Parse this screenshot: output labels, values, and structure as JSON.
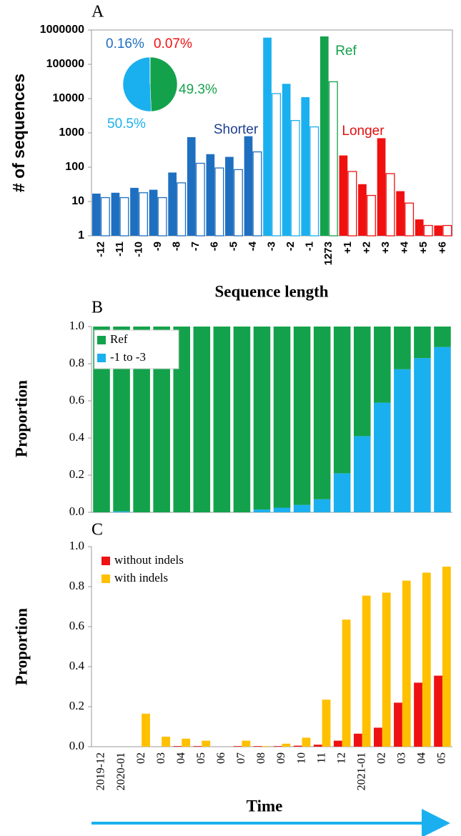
{
  "chart_data": [
    {
      "type": "bar",
      "label": "A",
      "log_scale": true,
      "ylabel": "# of sequences",
      "xlabel": "Sequence length",
      "categories": [
        "-12",
        "-11",
        "-10",
        "-9",
        "-8",
        "-7",
        "-6",
        "-5",
        "-4",
        "-3",
        "-2",
        "-1",
        "1273",
        "+1",
        "+2",
        "+3",
        "+4",
        "+5",
        "+6"
      ],
      "bar_colors": [
        "#1f6fc0",
        "#1f6fc0",
        "#1f6fc0",
        "#1f6fc0",
        "#1f6fc0",
        "#1f6fc0",
        "#1f6fc0",
        "#1f6fc0",
        "#1f6fc0",
        "#1ab0ef",
        "#1ab0ef",
        "#1ab0ef",
        "#13a24b",
        "#f01010",
        "#f01010",
        "#f01010",
        "#f01010",
        "#f01010",
        "#f01010"
      ],
      "series": [
        {
          "values": [
            17,
            18,
            25,
            22,
            70,
            750,
            240,
            200,
            800,
            600000,
            27000,
            11000,
            650000,
            220,
            32,
            700,
            20,
            3,
            2
          ]
        },
        {
          "values": [
            13,
            13,
            18,
            13,
            35,
            130,
            95,
            85,
            280,
            14000,
            2300,
            1500,
            31000,
            75,
            15,
            65,
            9,
            2,
            2
          ]
        }
      ],
      "ylim": [
        1,
        1000000
      ],
      "yticks": [
        1,
        10,
        100,
        1000,
        10000,
        100000,
        1000000
      ],
      "annotations": [
        {
          "text": "Shorter",
          "color": "#1f3f8f"
        },
        {
          "text": "Ref",
          "color": "#13a24b"
        },
        {
          "text": "Longer",
          "color": "#e01010"
        }
      ]
    },
    {
      "type": "pie",
      "values": [
        0.07,
        49.3,
        50.5,
        0.16
      ],
      "value_labels": [
        "0.07%",
        "49.3%",
        "50.5%",
        "0.16%"
      ],
      "colors": [
        "#f01010",
        "#13a24b",
        "#1ab0ef",
        "#1f6fc0"
      ]
    },
    {
      "type": "stacked_bar",
      "label": "B",
      "ylabel": "Proportion",
      "series": [
        {
          "name": "Ref",
          "color": "#13a24b",
          "values": [
            1,
            0.995,
            1,
            1,
            1,
            1,
            1,
            1,
            0.985,
            0.975,
            0.96,
            0.93,
            0.79,
            0.59,
            0.41,
            0.23,
            0.17,
            0.11
          ]
        },
        {
          "name": "-1 to -3",
          "color": "#1ab0ef",
          "values": [
            0,
            0.005,
            0,
            0,
            0,
            0,
            0,
            0,
            0.015,
            0.025,
            0.04,
            0.07,
            0.21,
            0.41,
            0.59,
            0.77,
            0.83,
            0.89
          ]
        }
      ],
      "ylim": [
        0,
        1
      ],
      "yticks": [
        {
          "value": 0,
          "label": "0.0"
        },
        {
          "value": 0.2,
          "label": "0.2"
        },
        {
          "value": 0.4,
          "label": "0.4"
        },
        {
          "value": 0.6,
          "label": "0.6"
        },
        {
          "value": 0.8,
          "label": "0.8"
        },
        {
          "value": 1,
          "label": "1.0"
        }
      ]
    },
    {
      "type": "grouped_bar",
      "label": "C",
      "ylabel": "Proportion",
      "xlabel": "Time",
      "categories": [
        "2019-12",
        "2020-01",
        "02",
        "03",
        "04",
        "05",
        "06",
        "07",
        "08",
        "09",
        "10",
        "11",
        "12",
        "2021-01",
        "02",
        "03",
        "04",
        "05"
      ],
      "series": [
        {
          "name": "without indels",
          "color": "#ee1111",
          "values": [
            0,
            0,
            0,
            0,
            0.003,
            0.003,
            0,
            0.003,
            0.003,
            0.003,
            0.005,
            0.01,
            0.03,
            0.065,
            0.095,
            0.22,
            0.32,
            0.355
          ]
        },
        {
          "name": "with indels",
          "color": "#ffc000",
          "values": [
            0,
            0,
            0.165,
            0.05,
            0.04,
            0.03,
            0,
            0.03,
            0.003,
            0.015,
            0.045,
            0.235,
            0.635,
            0.755,
            0.77,
            0.83,
            0.87,
            0.9
          ]
        }
      ],
      "ylim": [
        0,
        1
      ],
      "yticks": [
        {
          "value": 0,
          "label": "0.0"
        },
        {
          "value": 0.2,
          "label": "0.2"
        },
        {
          "value": 0.4,
          "label": "0.4"
        },
        {
          "value": 0.6,
          "label": "0.6"
        },
        {
          "value": 0.8,
          "label": "0.8"
        },
        {
          "value": 1,
          "label": "1.0"
        }
      ]
    }
  ]
}
